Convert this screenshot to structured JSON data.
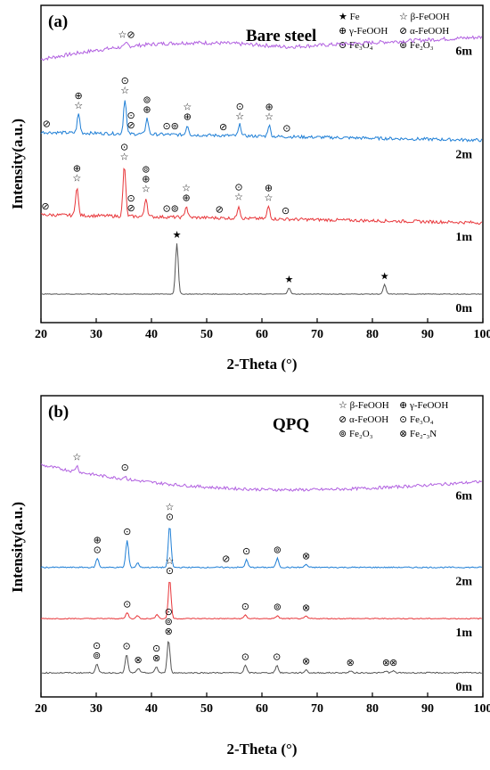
{
  "panels": [
    {
      "panel_label": "(a)",
      "title": "Bare steel",
      "xlabel": "2-Theta (°)",
      "ylabel": "Intensity(a.u.)",
      "legend": [
        {
          "marker": "★",
          "text": "Fe"
        },
        {
          "marker": "☆",
          "text": "β-FeOOH"
        },
        {
          "marker": "⊕",
          "text": "γ-FeOOH"
        },
        {
          "marker": "⊘",
          "text": "α-FeOOH"
        },
        {
          "marker": "⊙",
          "text": "Fe₃O₄"
        },
        {
          "marker": "⊚",
          "text": "Fe₂O₃"
        }
      ]
    },
    {
      "panel_label": "(b)",
      "title": "QPQ",
      "xlabel": "2-Theta (°)",
      "ylabel": "Intensity(a.u.)",
      "legend": [
        {
          "marker": "☆",
          "text": "β-FeOOH"
        },
        {
          "marker": "⊕",
          "text": "γ-FeOOH"
        },
        {
          "marker": "⊘",
          "text": "α-FeOOH"
        },
        {
          "marker": "⊙",
          "text": "Fe₃O₄"
        },
        {
          "marker": "⊚",
          "text": "Fe₂O₃"
        },
        {
          "marker": "⊗",
          "text": "Fe₂-₃N"
        }
      ]
    }
  ],
  "colors": {
    "0m": "#555555",
    "1m": "#e8363a",
    "2m": "#1f7fd6",
    "6m": "#b160e0"
  },
  "chart_data": [
    {
      "type": "line",
      "title": "Bare steel",
      "xlabel": "2-Theta (°)",
      "ylabel": "Intensity(a.u.)",
      "xlim": [
        20,
        100
      ],
      "xticks": [
        20,
        30,
        40,
        50,
        60,
        70,
        80,
        90,
        100
      ],
      "series": [
        {
          "name": "6m",
          "base": 0.83,
          "shape": "hump",
          "noise": 0.012,
          "peaks": [
            [
              35.5,
              0.01
            ]
          ],
          "markers": [
            {
              "x": 35.5,
              "symbols": [
                "☆⊘"
              ]
            }
          ]
        },
        {
          "name": "2m",
          "base": 0.6,
          "shape": "decay",
          "noise": 0.01,
          "peaks": [
            [
              26.8,
              0.06
            ],
            [
              35.2,
              0.11
            ],
            [
              39.2,
              0.05
            ],
            [
              46.5,
              0.03
            ],
            [
              56.0,
              0.035
            ],
            [
              61.3,
              0.035
            ]
          ],
          "markers": [
            {
              "x": 21.0,
              "symbols": [
                "⊘"
              ]
            },
            {
              "x": 26.8,
              "symbols": [
                "☆",
                "⊕"
              ]
            },
            {
              "x": 35.2,
              "symbols": [
                "☆",
                "⊙"
              ]
            },
            {
              "x": 36.3,
              "symbols": [
                "⊘",
                "⊙"
              ]
            },
            {
              "x": 39.2,
              "symbols": [
                "⊕",
                "⊚"
              ]
            },
            {
              "x": 43.5,
              "symbols": [
                "⊙⊚"
              ]
            },
            {
              "x": 46.5,
              "symbols": [
                "⊕",
                "☆"
              ]
            },
            {
              "x": 53.0,
              "symbols": [
                "⊘"
              ]
            },
            {
              "x": 56.0,
              "symbols": [
                "☆",
                "⊙"
              ]
            },
            {
              "x": 61.3,
              "symbols": [
                "☆",
                "⊕"
              ]
            },
            {
              "x": 64.5,
              "symbols": [
                "⊙"
              ]
            }
          ]
        },
        {
          "name": "1m",
          "base": 0.34,
          "shape": "decay",
          "noise": 0.01,
          "peaks": [
            [
              26.5,
              0.09
            ],
            [
              35.1,
              0.16
            ],
            [
              39.0,
              0.06
            ],
            [
              46.3,
              0.035
            ],
            [
              55.8,
              0.04
            ],
            [
              61.2,
              0.04
            ]
          ],
          "markers": [
            {
              "x": 20.8,
              "symbols": [
                "⊘"
              ]
            },
            {
              "x": 26.5,
              "symbols": [
                "☆",
                "⊕"
              ]
            },
            {
              "x": 35.1,
              "symbols": [
                "☆",
                "⊙"
              ]
            },
            {
              "x": 36.3,
              "symbols": [
                "⊘",
                "⊙"
              ]
            },
            {
              "x": 39.0,
              "symbols": [
                "☆",
                "⊕",
                "⊚"
              ]
            },
            {
              "x": 43.5,
              "symbols": [
                "⊙⊚"
              ]
            },
            {
              "x": 46.3,
              "symbols": [
                "⊕",
                "☆"
              ]
            },
            {
              "x": 52.3,
              "symbols": [
                "⊘"
              ]
            },
            {
              "x": 55.8,
              "symbols": [
                "☆",
                "⊙"
              ]
            },
            {
              "x": 61.2,
              "symbols": [
                "☆",
                "⊕"
              ]
            },
            {
              "x": 64.3,
              "symbols": [
                "⊙"
              ]
            }
          ]
        },
        {
          "name": "0m",
          "base": 0.09,
          "shape": "flat",
          "noise": 0.002,
          "peaks": [
            [
              44.6,
              0.16
            ],
            [
              64.9,
              0.02
            ],
            [
              82.2,
              0.03
            ]
          ],
          "markers": [
            {
              "x": 44.6,
              "symbols": [
                "★"
              ]
            },
            {
              "x": 64.9,
              "symbols": [
                "★"
              ]
            },
            {
              "x": 82.2,
              "symbols": [
                "★"
              ]
            }
          ]
        }
      ]
    },
    {
      "type": "line",
      "title": "QPQ",
      "xlabel": "2-Theta (°)",
      "ylabel": "Intensity(a.u.)",
      "xlim": [
        20,
        100
      ],
      "xticks": [
        20,
        30,
        40,
        50,
        60,
        70,
        80,
        90,
        100
      ],
      "series": [
        {
          "name": "6m",
          "base": 0.68,
          "shape": "bowl",
          "noise": 0.01,
          "peaks": [
            [
              26.5,
              0.02
            ],
            [
              35.2,
              0.01
            ]
          ],
          "markers": [
            {
              "x": 26.5,
              "symbols": [
                "☆"
              ]
            },
            {
              "x": 35.2,
              "symbols": [
                "⊙"
              ]
            }
          ]
        },
        {
          "name": "2m",
          "base": 0.43,
          "shape": "flat",
          "noise": 0.004,
          "peaks": [
            [
              30.2,
              0.03
            ],
            [
              35.6,
              0.09
            ],
            [
              37.5,
              0.015
            ],
            [
              43.3,
              0.14
            ],
            [
              57.2,
              0.025
            ],
            [
              62.8,
              0.03
            ],
            [
              68.0,
              0.01
            ]
          ],
          "markers": [
            {
              "x": 30.2,
              "symbols": [
                "⊙",
                "⊕"
              ]
            },
            {
              "x": 35.6,
              "symbols": [
                "⊙"
              ]
            },
            {
              "x": 43.3,
              "symbols": [
                "⊙",
                "☆"
              ]
            },
            {
              "x": 53.5,
              "symbols": [
                "⊘"
              ]
            },
            {
              "x": 57.2,
              "symbols": [
                "⊙"
              ]
            },
            {
              "x": 62.8,
              "symbols": [
                "⊚"
              ]
            },
            {
              "x": 68.0,
              "symbols": [
                "⊗"
              ]
            }
          ]
        },
        {
          "name": "1m",
          "base": 0.26,
          "shape": "flat",
          "noise": 0.003,
          "peaks": [
            [
              35.6,
              0.02
            ],
            [
              37.5,
              0.01
            ],
            [
              41.0,
              0.015
            ],
            [
              43.3,
              0.13
            ],
            [
              57.0,
              0.012
            ],
            [
              62.8,
              0.01
            ],
            [
              68.0,
              0.008
            ]
          ],
          "markers": [
            {
              "x": 35.6,
              "symbols": [
                "⊙"
              ]
            },
            {
              "x": 43.3,
              "symbols": [
                "⊙",
                "☆"
              ]
            },
            {
              "x": 57.0,
              "symbols": [
                "⊙"
              ]
            },
            {
              "x": 62.8,
              "symbols": [
                "⊚"
              ]
            },
            {
              "x": 68.0,
              "symbols": [
                "⊗"
              ]
            }
          ]
        },
        {
          "name": "0m",
          "base": 0.08,
          "shape": "flat",
          "noise": 0.004,
          "peaks": [
            [
              30.1,
              0.03
            ],
            [
              35.5,
              0.06
            ],
            [
              37.6,
              0.015
            ],
            [
              40.9,
              0.02
            ],
            [
              43.1,
              0.11
            ],
            [
              57.0,
              0.025
            ],
            [
              62.7,
              0.025
            ],
            [
              68.0,
              0.01
            ],
            [
              76.0,
              0.006
            ],
            [
              82.5,
              0.006
            ],
            [
              83.8,
              0.006
            ]
          ],
          "markers": [
            {
              "x": 30.1,
              "symbols": [
                "⊚",
                "⊙"
              ]
            },
            {
              "x": 35.5,
              "symbols": [
                "⊙"
              ]
            },
            {
              "x": 37.6,
              "symbols": [
                "⊗"
              ]
            },
            {
              "x": 40.9,
              "symbols": [
                "⊗",
                "⊙"
              ]
            },
            {
              "x": 43.1,
              "symbols": [
                "⊗",
                "⊚",
                "⊙"
              ]
            },
            {
              "x": 57.0,
              "symbols": [
                "⊙"
              ]
            },
            {
              "x": 62.7,
              "symbols": [
                "⊙"
              ]
            },
            {
              "x": 68.0,
              "symbols": [
                "⊗"
              ]
            },
            {
              "x": 76.0,
              "symbols": [
                "⊗"
              ]
            },
            {
              "x": 82.5,
              "symbols": [
                "⊗"
              ]
            },
            {
              "x": 83.8,
              "symbols": [
                "⊗"
              ]
            }
          ]
        }
      ]
    }
  ]
}
